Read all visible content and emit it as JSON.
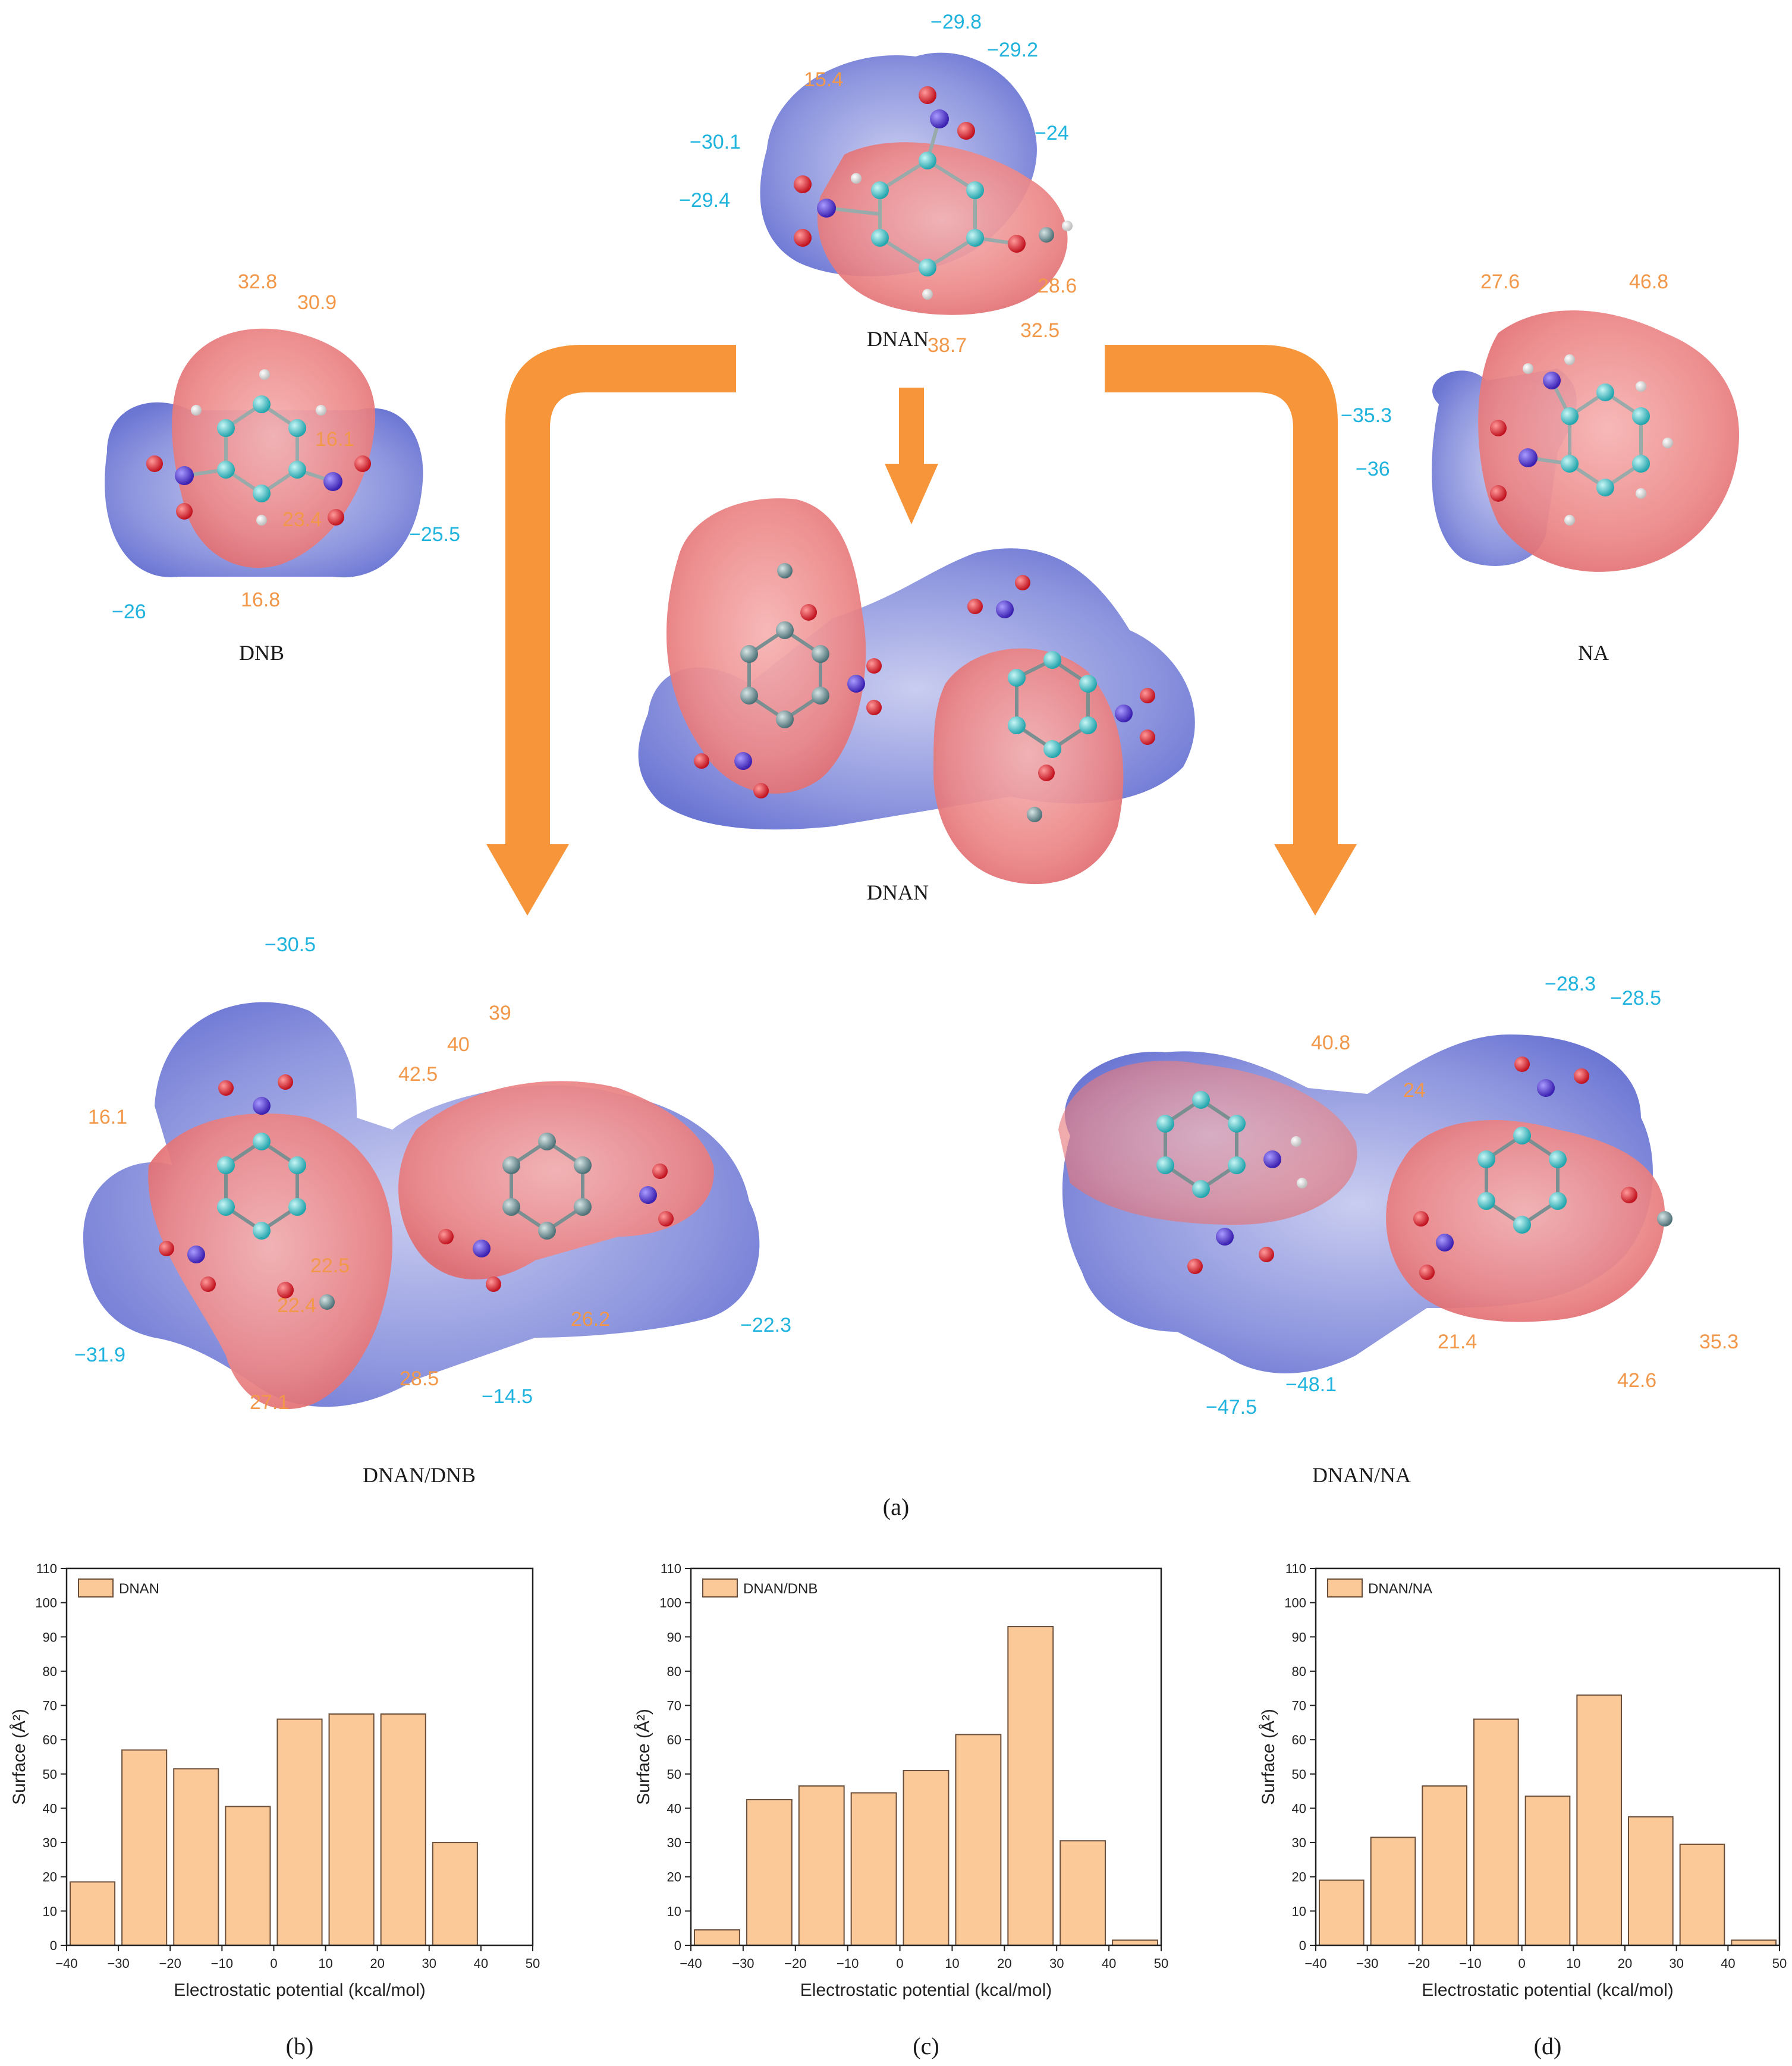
{
  "figure": {
    "panel_a_caption": "(a)",
    "colors": {
      "positive": "#f2984a",
      "negative": "#1fb3dd",
      "bar_fill": "#fbc897",
      "bar_stroke": "#6b4f3a",
      "arrow": "#f7953b",
      "surface_pos": "#e8757a",
      "surface_neg": "#7b85d9"
    },
    "molecules": {
      "dnan_top": {
        "name": "DNAN",
        "neg": [
          "−29.8",
          "−29.2",
          "−24",
          "−30.1",
          "−29.4"
        ],
        "pos": [
          "15.4",
          "28.6",
          "32.5",
          "38.7"
        ]
      },
      "dnb": {
        "name": "DNB",
        "pos": [
          "32.8",
          "30.9",
          "16.1",
          "23.4",
          "16.8"
        ],
        "neg": [
          "−25.5",
          "−26"
        ]
      },
      "na": {
        "name": "NA",
        "pos": [
          "27.6",
          "46.8"
        ],
        "neg": [
          "−35.3",
          "−36"
        ]
      },
      "dnan_dimer": {
        "name": "DNAN"
      },
      "dnan_dnb": {
        "name": "DNAN/DNB",
        "neg": [
          "−30.5",
          "−31.9",
          "−14.5",
          "−22.3"
        ],
        "pos": [
          "16.1",
          "40",
          "39",
          "42.5",
          "22.5",
          "22.4",
          "27.1",
          "28.5",
          "26.2"
        ]
      },
      "dnan_na": {
        "name": "DNAN/NA",
        "neg": [
          "−28.3",
          "−28.5",
          "−47.5",
          "−48.1"
        ],
        "pos": [
          "40.8",
          "24",
          "21.4",
          "42.6",
          "35.3"
        ]
      }
    }
  },
  "chart_data": [
    {
      "type": "bar",
      "panel": "(b)",
      "legend": "DNAN",
      "xlabel": "Electrostatic potential (kcal/mol)",
      "ylabel": "Surface (Å²)",
      "xlim": [
        -40,
        50
      ],
      "ylim": [
        0,
        110
      ],
      "xticks": [
        "−40",
        "−30",
        "−20",
        "−10",
        "0",
        "10",
        "20",
        "30",
        "40",
        "50"
      ],
      "yticks": [
        "0",
        "10",
        "20",
        "30",
        "40",
        "50",
        "60",
        "70",
        "80",
        "90",
        "100",
        "110"
      ],
      "bins": [
        [
          -40,
          -30
        ],
        [
          -30,
          -20
        ],
        [
          -20,
          -10
        ],
        [
          -10,
          0
        ],
        [
          0,
          10
        ],
        [
          10,
          20
        ],
        [
          20,
          30
        ],
        [
          30,
          40
        ]
      ],
      "values": [
        18.5,
        57,
        51.5,
        40.5,
        66,
        67.5,
        67.5,
        30
      ]
    },
    {
      "type": "bar",
      "panel": "(c)",
      "legend": "DNAN/DNB",
      "xlabel": "Electrostatic potential (kcal/mol)",
      "ylabel": "Surface (Å²)",
      "xlim": [
        -40,
        50
      ],
      "ylim": [
        0,
        110
      ],
      "xticks": [
        "−40",
        "−30",
        "−20",
        "−10",
        "0",
        "10",
        "20",
        "30",
        "40",
        "50"
      ],
      "yticks": [
        "0",
        "10",
        "20",
        "30",
        "40",
        "50",
        "60",
        "70",
        "80",
        "90",
        "100",
        "110"
      ],
      "bins": [
        [
          -40,
          -30
        ],
        [
          -30,
          -20
        ],
        [
          -20,
          -10
        ],
        [
          -10,
          0
        ],
        [
          0,
          10
        ],
        [
          10,
          20
        ],
        [
          20,
          30
        ],
        [
          30,
          40
        ],
        [
          40,
          50
        ]
      ],
      "values": [
        4.5,
        42.5,
        46.5,
        44.5,
        51,
        61.5,
        93,
        30.5,
        1.5
      ]
    },
    {
      "type": "bar",
      "panel": "(d)",
      "legend": "DNAN/NA",
      "xlabel": "Electrostatic potential (kcal/mol)",
      "ylabel": "Surface (Å²)",
      "xlim": [
        -40,
        50
      ],
      "ylim": [
        0,
        110
      ],
      "xticks": [
        "−40",
        "−30",
        "−20",
        "−10",
        "0",
        "10",
        "20",
        "30",
        "40",
        "50"
      ],
      "yticks": [
        "0",
        "10",
        "20",
        "30",
        "40",
        "50",
        "60",
        "70",
        "80",
        "90",
        "100",
        "110"
      ],
      "bins": [
        [
          -40,
          -30
        ],
        [
          -30,
          -20
        ],
        [
          -20,
          -10
        ],
        [
          -10,
          0
        ],
        [
          0,
          10
        ],
        [
          10,
          20
        ],
        [
          20,
          30
        ],
        [
          30,
          40
        ],
        [
          40,
          50
        ]
      ],
      "values": [
        19,
        31.5,
        46.5,
        66,
        43.5,
        73,
        37.5,
        29.5,
        1.5
      ]
    }
  ]
}
